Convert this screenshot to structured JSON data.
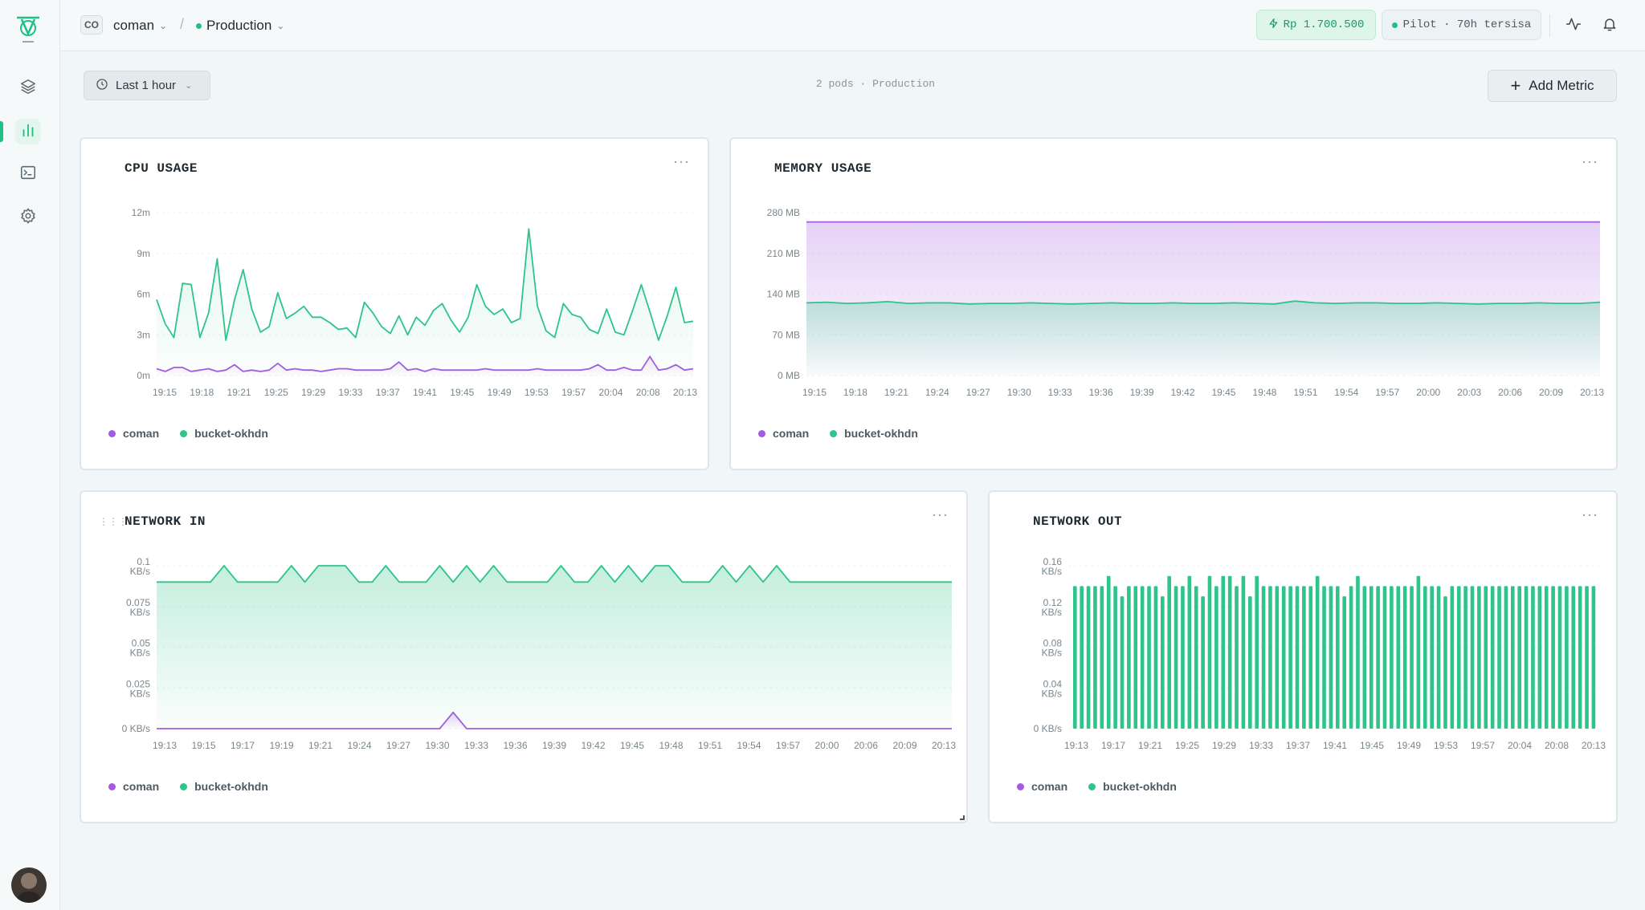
{
  "topbar": {
    "org_initials": "CO",
    "org_name": "coman",
    "environment": "Production",
    "balance": "Rp 1.700.500",
    "plan": "Pilot · 70h tersisa"
  },
  "sidebar": {
    "items": [
      {
        "name": "layers-icon"
      },
      {
        "name": "bar-chart-icon"
      },
      {
        "name": "terminal-icon"
      },
      {
        "name": "settings-icon"
      }
    ]
  },
  "toolbar": {
    "time_range": "Last 1 hour",
    "summary": "2 pods · Production",
    "add_metric_label": "Add Metric"
  },
  "colors": {
    "accent": "#1fbf86",
    "series_coman": "#a55ae0",
    "series_bucket": "#2ec48a"
  },
  "charts": {
    "cpu": {
      "title": "CPU USAGE",
      "legend": [
        "coman",
        "bucket-okhdn"
      ]
    },
    "memory": {
      "title": "MEMORY USAGE",
      "legend": [
        "coman",
        "bucket-okhdn"
      ]
    },
    "network_in": {
      "title": "NETWORK IN",
      "legend": [
        "coman",
        "bucket-okhdn"
      ]
    },
    "network_out": {
      "title": "NETWORK OUT",
      "legend": [
        "coman",
        "bucket-okhdn"
      ]
    }
  },
  "chart_data": [
    {
      "id": "cpu",
      "type": "line",
      "title": "CPU USAGE",
      "xlabel": "",
      "ylabel": "",
      "y_ticks": [
        "0m",
        "3m",
        "6m",
        "9m",
        "12m"
      ],
      "ylim": [
        0,
        12
      ],
      "x_ticks": [
        "19:15",
        "19:18",
        "19:21",
        "19:25",
        "19:29",
        "19:33",
        "19:37",
        "19:41",
        "19:45",
        "19:49",
        "19:53",
        "19:57",
        "20:04",
        "20:08",
        "20:13"
      ],
      "grid": true,
      "legend_position": "bottom-left",
      "series": [
        {
          "name": "coman",
          "color": "#a55ae0",
          "values": [
            0.5,
            0.3,
            0.6,
            0.6,
            0.3,
            0.4,
            0.5,
            0.3,
            0.4,
            0.8,
            0.3,
            0.4,
            0.3,
            0.4,
            0.9,
            0.4,
            0.5,
            0.4,
            0.4,
            0.3,
            0.4,
            0.5,
            0.5,
            0.4,
            0.4,
            0.4,
            0.4,
            0.5,
            1.0,
            0.4,
            0.5,
            0.3,
            0.5,
            0.4,
            0.4,
            0.4,
            0.4,
            0.4,
            0.5,
            0.4,
            0.4,
            0.4,
            0.4,
            0.4,
            0.5,
            0.4,
            0.4,
            0.4,
            0.4,
            0.4,
            0.5,
            0.8,
            0.4,
            0.4,
            0.6,
            0.4,
            0.4,
            1.4,
            0.4,
            0.5,
            0.8,
            0.4,
            0.5
          ]
        },
        {
          "name": "bucket-okhdn",
          "color": "#2ec48a",
          "values": [
            5.6,
            3.8,
            2.8,
            6.8,
            6.7,
            2.8,
            4.6,
            8.6,
            2.6,
            5.6,
            7.8,
            4.9,
            3.2,
            3.6,
            6.1,
            4.2,
            4.6,
            5.1,
            4.3,
            4.3,
            3.9,
            3.4,
            3.5,
            2.8,
            5.4,
            4.6,
            3.6,
            3.1,
            4.4,
            3.0,
            4.3,
            3.7,
            4.8,
            5.3,
            4.1,
            3.2,
            4.3,
            6.7,
            5.1,
            4.5,
            4.9,
            3.9,
            4.2,
            10.8,
            5.1,
            3.3,
            2.8,
            5.3,
            4.5,
            4.3,
            3.4,
            3.1,
            4.9,
            3.2,
            3.0,
            4.8,
            6.7,
            4.7,
            2.6,
            4.4,
            6.5,
            3.9,
            4.0
          ]
        }
      ]
    },
    {
      "id": "memory",
      "type": "area",
      "title": "MEMORY USAGE",
      "xlabel": "",
      "ylabel": "",
      "y_ticks": [
        "0 MB",
        "70 MB",
        "140 MB",
        "210 MB",
        "280 MB"
      ],
      "ylim": [
        0,
        280
      ],
      "x_ticks": [
        "19:15",
        "19:18",
        "19:21",
        "19:24",
        "19:27",
        "19:30",
        "19:33",
        "19:36",
        "19:39",
        "19:42",
        "19:45",
        "19:48",
        "19:51",
        "19:54",
        "19:57",
        "20:00",
        "20:03",
        "20:06",
        "20:09",
        "20:13"
      ],
      "grid": true,
      "legend_position": "bottom-left",
      "series": [
        {
          "name": "coman",
          "color": "#a55ae0",
          "values": [
            264,
            264,
            264,
            264,
            264,
            264,
            264,
            264,
            264,
            264,
            264,
            264,
            264,
            264,
            264,
            264,
            264,
            264,
            264,
            264,
            264,
            264,
            264,
            264,
            264,
            264,
            264,
            264,
            264,
            264,
            264,
            264,
            264,
            264,
            264,
            264,
            264,
            264,
            264,
            264
          ]
        },
        {
          "name": "bucket-okhdn",
          "color": "#2ec48a",
          "values": [
            125,
            126,
            124,
            125,
            127,
            124,
            125,
            125,
            123,
            124,
            124,
            125,
            124,
            123,
            124,
            125,
            124,
            124,
            125,
            124,
            124,
            125,
            124,
            123,
            128,
            125,
            124,
            125,
            125,
            124,
            124,
            125,
            124,
            123,
            124,
            124,
            125,
            124,
            124,
            126
          ]
        }
      ]
    },
    {
      "id": "network_in",
      "type": "area",
      "title": "NETWORK IN",
      "xlabel": "",
      "ylabel": "",
      "y_ticks": [
        "0 KB/s",
        "0.025 KB/s",
        "0.05 KB/s",
        "0.075 KB/s",
        "0.1 KB/s"
      ],
      "ylim": [
        0,
        0.1
      ],
      "x_ticks": [
        "19:13",
        "19:15",
        "19:17",
        "19:19",
        "19:21",
        "19:24",
        "19:27",
        "19:30",
        "19:33",
        "19:36",
        "19:39",
        "19:42",
        "19:45",
        "19:48",
        "19:51",
        "19:54",
        "19:57",
        "20:00",
        "20:06",
        "20:09",
        "20:13"
      ],
      "grid": true,
      "legend_position": "bottom-left",
      "series": [
        {
          "name": "coman",
          "color": "#a55ae0",
          "values": [
            0,
            0,
            0,
            0,
            0,
            0,
            0,
            0,
            0,
            0,
            0,
            0,
            0,
            0,
            0,
            0,
            0,
            0,
            0,
            0,
            0,
            0,
            0.01,
            0,
            0,
            0,
            0,
            0,
            0,
            0,
            0,
            0,
            0,
            0,
            0,
            0,
            0,
            0,
            0,
            0,
            0,
            0,
            0,
            0,
            0,
            0,
            0,
            0,
            0,
            0,
            0,
            0,
            0,
            0,
            0,
            0,
            0,
            0,
            0,
            0
          ]
        },
        {
          "name": "bucket-okhdn",
          "color": "#2ec48a",
          "values": [
            0.09,
            0.09,
            0.09,
            0.09,
            0.09,
            0.1,
            0.09,
            0.09,
            0.09,
            0.09,
            0.1,
            0.09,
            0.1,
            0.1,
            0.1,
            0.09,
            0.09,
            0.1,
            0.09,
            0.09,
            0.09,
            0.1,
            0.09,
            0.1,
            0.09,
            0.1,
            0.09,
            0.09,
            0.09,
            0.09,
            0.1,
            0.09,
            0.09,
            0.1,
            0.09,
            0.1,
            0.09,
            0.1,
            0.1,
            0.09,
            0.09,
            0.09,
            0.1,
            0.09,
            0.1,
            0.09,
            0.1,
            0.09,
            0.09,
            0.09,
            0.09,
            0.09,
            0.09,
            0.09,
            0.09,
            0.09,
            0.09,
            0.09,
            0.09,
            0.09
          ]
        }
      ]
    },
    {
      "id": "network_out",
      "type": "bar",
      "title": "NETWORK OUT",
      "xlabel": "",
      "ylabel": "",
      "y_ticks": [
        "0 KB/s",
        "0.04 KB/s",
        "0.08 KB/s",
        "0.12 KB/s",
        "0.16 KB/s"
      ],
      "ylim": [
        0,
        0.16
      ],
      "x_ticks": [
        "19:13",
        "19:17",
        "19:21",
        "19:25",
        "19:29",
        "19:33",
        "19:37",
        "19:41",
        "19:45",
        "19:49",
        "19:53",
        "19:57",
        "20:04",
        "20:08",
        "20:13"
      ],
      "grid": true,
      "legend_position": "bottom-left",
      "series": [
        {
          "name": "bucket-okhdn",
          "color": "#2ec48a",
          "values": [
            0.14,
            0.14,
            0.14,
            0.14,
            0.14,
            0.15,
            0.14,
            0.13,
            0.14,
            0.14,
            0.14,
            0.14,
            0.14,
            0.13,
            0.15,
            0.14,
            0.14,
            0.15,
            0.14,
            0.13,
            0.15,
            0.14,
            0.15,
            0.15,
            0.14,
            0.15,
            0.13,
            0.15,
            0.14,
            0.14,
            0.14,
            0.14,
            0.14,
            0.14,
            0.14,
            0.14,
            0.15,
            0.14,
            0.14,
            0.14,
            0.13,
            0.14,
            0.15,
            0.14,
            0.14,
            0.14,
            0.14,
            0.14,
            0.14,
            0.14,
            0.14,
            0.15,
            0.14,
            0.14,
            0.14,
            0.13,
            0.14,
            0.14,
            0.14,
            0.14,
            0.14,
            0.14,
            0.14,
            0.14,
            0.14,
            0.14,
            0.14,
            0.14,
            0.14,
            0.14,
            0.14,
            0.14,
            0.14,
            0.14,
            0.14,
            0.14,
            0.14,
            0.14
          ]
        }
      ]
    }
  ]
}
